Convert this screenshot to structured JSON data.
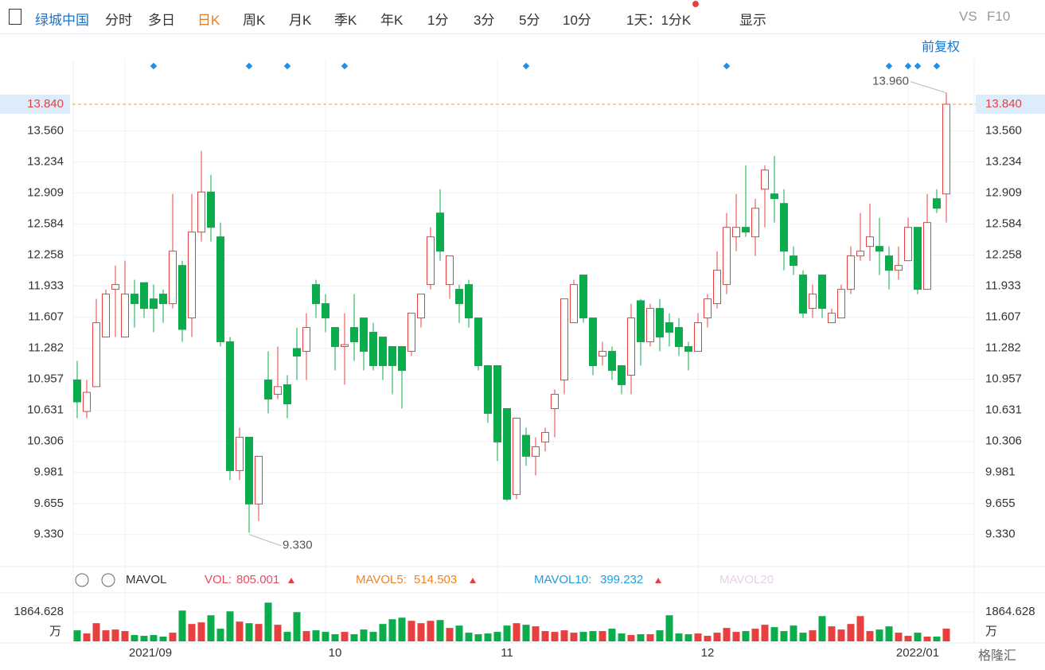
{
  "toolbar": {
    "stock_name": "绿城中国",
    "tabs": [
      "分时",
      "多日",
      "日K",
      "周K",
      "月K",
      "季K",
      "年K",
      "1分",
      "3分",
      "5分",
      "10分"
    ],
    "active_tab": "日K",
    "period_select": "1天：1分K",
    "display": "显示",
    "vs": "VS",
    "f10": "F10",
    "adjust": "前复权"
  },
  "chart_data": {
    "type": "candlestick",
    "up_color": "#e8403f",
    "down_color": "#0bac4b",
    "ylim": [
      9.011,
      14.307
    ],
    "yticks": [
      {
        "value": 13.56,
        "label": "13.560"
      },
      13.234,
      12.909,
      12.584,
      12.258,
      11.933,
      11.607,
      11.282,
      10.957,
      10.631,
      10.306,
      9.981,
      9.655,
      {
        "value": 9.33,
        "label": "9.330"
      }
    ],
    "current_price": {
      "value": 13.84,
      "label": "13.840"
    },
    "high_annotation": {
      "value": 13.96,
      "label": "13.960",
      "index": 91
    },
    "low_annotation": {
      "value": 9.33,
      "label": "9.330",
      "index": 18
    },
    "x_labels": [
      {
        "label": "2021/09",
        "index": 5
      },
      {
        "label": "10",
        "index": 26
      },
      {
        "label": "11",
        "index": 44
      },
      {
        "label": "12",
        "index": 65
      },
      {
        "label": "2022/01",
        "index": 87
      }
    ],
    "event_markers": [
      8,
      18,
      22,
      28,
      47,
      68,
      85,
      87,
      88,
      90
    ],
    "ohlc": [
      [
        10.95,
        11.15,
        10.55,
        10.72
      ],
      [
        10.62,
        10.95,
        10.55,
        10.82
      ],
      [
        10.88,
        11.8,
        10.88,
        11.55
      ],
      [
        11.4,
        11.9,
        11.4,
        11.85
      ],
      [
        11.9,
        12.15,
        11.4,
        11.95
      ],
      [
        11.4,
        12.2,
        11.4,
        11.85
      ],
      [
        11.85,
        12.0,
        11.5,
        11.75
      ],
      [
        11.97,
        11.97,
        11.6,
        11.7
      ],
      [
        11.8,
        11.95,
        11.45,
        11.7
      ],
      [
        11.85,
        11.9,
        11.55,
        11.75
      ],
      [
        11.75,
        12.9,
        11.7,
        12.3
      ],
      [
        12.15,
        12.2,
        11.35,
        11.48
      ],
      [
        11.6,
        12.9,
        11.4,
        12.5
      ],
      [
        12.5,
        13.35,
        12.4,
        12.92
      ],
      [
        12.92,
        13.1,
        12.4,
        12.55
      ],
      [
        12.45,
        12.6,
        11.3,
        11.35
      ],
      [
        11.35,
        11.4,
        9.9,
        10.0
      ],
      [
        10.0,
        10.45,
        9.9,
        10.35
      ],
      [
        10.35,
        10.35,
        9.35,
        9.65
      ],
      [
        9.65,
        10.15,
        9.47,
        10.15
      ],
      [
        10.95,
        11.25,
        10.6,
        10.75
      ],
      [
        10.8,
        11.3,
        10.75,
        10.88
      ],
      [
        10.9,
        11.0,
        10.55,
        10.7
      ],
      [
        11.28,
        11.5,
        10.95,
        11.2
      ],
      [
        11.25,
        11.65,
        10.95,
        11.5
      ],
      [
        11.95,
        12.0,
        11.6,
        11.75
      ],
      [
        11.75,
        11.85,
        11.45,
        11.6
      ],
      [
        11.5,
        11.5,
        11.05,
        11.3
      ],
      [
        11.3,
        11.65,
        10.9,
        11.32
      ],
      [
        11.5,
        11.85,
        11.15,
        11.35
      ],
      [
        11.6,
        11.6,
        11.05,
        11.25
      ],
      [
        11.45,
        11.55,
        11.05,
        11.1
      ],
      [
        11.4,
        11.4,
        10.95,
        11.1
      ],
      [
        11.3,
        11.3,
        10.8,
        11.1
      ],
      [
        11.3,
        11.3,
        10.65,
        11.05
      ],
      [
        11.25,
        11.65,
        11.2,
        11.65
      ],
      [
        11.6,
        11.85,
        11.5,
        11.85
      ],
      [
        11.95,
        12.55,
        11.9,
        12.45
      ],
      [
        12.7,
        12.95,
        12.2,
        12.3
      ],
      [
        11.95,
        12.25,
        11.8,
        12.25
      ],
      [
        11.9,
        11.95,
        11.55,
        11.75
      ],
      [
        11.95,
        12.0,
        11.5,
        11.6
      ],
      [
        11.6,
        11.6,
        11.05,
        11.1
      ],
      [
        11.1,
        11.1,
        10.5,
        10.6
      ],
      [
        11.1,
        11.1,
        10.1,
        10.3
      ],
      [
        10.65,
        10.65,
        9.68,
        9.7
      ],
      [
        9.75,
        10.55,
        9.7,
        10.55
      ],
      [
        10.37,
        10.45,
        10.05,
        10.15
      ],
      [
        10.15,
        10.35,
        9.95,
        10.25
      ],
      [
        10.3,
        10.45,
        10.2,
        10.4
      ],
      [
        10.65,
        10.85,
        10.35,
        10.8
      ],
      [
        10.95,
        11.8,
        10.8,
        11.8
      ],
      [
        11.55,
        12.0,
        11.55,
        11.95
      ],
      [
        12.05,
        12.05,
        11.55,
        11.6
      ],
      [
        11.6,
        11.6,
        11.0,
        11.1
      ],
      [
        11.2,
        11.35,
        11.1,
        11.25
      ],
      [
        11.25,
        11.3,
        10.95,
        11.05
      ],
      [
        11.1,
        11.1,
        10.8,
        10.9
      ],
      [
        11.0,
        11.75,
        10.8,
        11.6
      ],
      [
        11.78,
        11.8,
        11.1,
        11.35
      ],
      [
        11.35,
        11.75,
        11.3,
        11.7
      ],
      [
        11.7,
        11.8,
        11.25,
        11.4
      ],
      [
        11.55,
        11.65,
        11.3,
        11.45
      ],
      [
        11.5,
        11.6,
        11.2,
        11.3
      ],
      [
        11.3,
        11.35,
        11.05,
        11.25
      ],
      [
        11.25,
        11.65,
        11.25,
        11.55
      ],
      [
        11.6,
        11.85,
        11.5,
        11.8
      ],
      [
        11.75,
        12.3,
        11.7,
        12.1
      ],
      [
        11.95,
        12.7,
        11.85,
        12.55
      ],
      [
        12.45,
        12.9,
        12.3,
        12.55
      ],
      [
        12.55,
        13.2,
        12.45,
        12.5
      ],
      [
        12.45,
        12.85,
        12.25,
        12.75
      ],
      [
        12.95,
        13.2,
        12.55,
        13.15
      ],
      [
        12.9,
        13.3,
        12.6,
        12.85
      ],
      [
        12.8,
        12.95,
        12.1,
        12.3
      ],
      [
        12.25,
        12.35,
        12.05,
        12.15
      ],
      [
        12.05,
        12.1,
        11.6,
        11.65
      ],
      [
        11.7,
        11.95,
        11.6,
        11.85
      ],
      [
        12.05,
        12.05,
        11.6,
        11.7
      ],
      [
        11.55,
        11.7,
        11.55,
        11.65
      ],
      [
        11.6,
        11.95,
        11.6,
        11.9
      ],
      [
        11.9,
        12.35,
        11.85,
        12.25
      ],
      [
        12.25,
        12.7,
        12.2,
        12.3
      ],
      [
        12.35,
        12.8,
        12.2,
        12.45
      ],
      [
        12.35,
        12.65,
        12.05,
        12.3
      ],
      [
        12.25,
        12.35,
        11.9,
        12.1
      ],
      [
        12.1,
        12.35,
        12.0,
        12.15
      ],
      [
        12.2,
        12.65,
        12.2,
        12.55
      ],
      [
        12.55,
        12.55,
        11.85,
        11.9
      ],
      [
        11.9,
        12.9,
        11.9,
        12.6
      ],
      [
        12.85,
        12.95,
        12.7,
        12.75
      ],
      [
        12.9,
        13.96,
        12.6,
        13.84
      ]
    ],
    "volume": {
      "indicator": "MAVOL",
      "vol_label": "VOL:",
      "vol_value": 805.001,
      "mavol5_label": "MAVOL5:",
      "mavol5_value": 514.503,
      "mavol10_label": "MAVOL10:",
      "mavol10_value": 399.232,
      "mavol20_label": "MAVOL20",
      "unit": "万",
      "ylim": [
        0,
        2720
      ],
      "yticks": [
        1864.628
      ],
      "values": [
        700,
        500,
        1150,
        700,
        750,
        650,
        400,
        350,
        400,
        300,
        550,
        1950,
        1100,
        1200,
        1650,
        800,
        1900,
        1250,
        1150,
        1100,
        2450,
        1050,
        600,
        1850,
        650,
        700,
        600,
        450,
        600,
        450,
        750,
        600,
        1100,
        1400,
        1500,
        1300,
        1150,
        1300,
        1350,
        850,
        1000,
        550,
        450,
        500,
        600,
        1000,
        1150,
        1050,
        950,
        650,
        600,
        700,
        550,
        600,
        650,
        650,
        800,
        500,
        400,
        450,
        450,
        700,
        1650,
        500,
        450,
        500,
        350,
        550,
        850,
        600,
        650,
        800,
        1050,
        900,
        650,
        1000,
        550,
        700,
        1600,
        950,
        750,
        1100,
        1600,
        650,
        750,
        950,
        550,
        350,
        550,
        300,
        300,
        805.001
      ]
    },
    "watermark": "格隆汇"
  }
}
